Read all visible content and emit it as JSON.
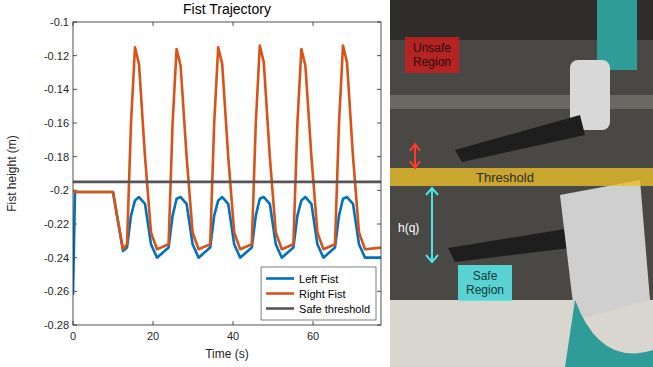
{
  "chart_data": {
    "type": "line",
    "title": "Fist Trajectory",
    "x_label": "Time (s)",
    "y_label": "Fist height (m)",
    "x": [
      0,
      0.5,
      10,
      11,
      12.5,
      13.5,
      14.5,
      15.5,
      16.5,
      18,
      19.5,
      21,
      23.9,
      24.9,
      25.9,
      26.9,
      28.4,
      29.9,
      31.4,
      34.3,
      35.3,
      36.3,
      37.3,
      38.8,
      40.3,
      41.8,
      44.7,
      45.7,
      46.7,
      47.7,
      49.2,
      50.7,
      52.2,
      55.1,
      56.1,
      57.1,
      58.1,
      59.6,
      61.1,
      62.6,
      65.5,
      66.5,
      67.5,
      68.5,
      70,
      71.5,
      73,
      77
    ],
    "series": [
      {
        "name": "Left Fist",
        "color": "#0072bd",
        "values": [
          -0.262,
          -0.201,
          -0.201,
          -0.215,
          -0.236,
          -0.234,
          -0.215,
          -0.206,
          -0.204,
          -0.208,
          -0.232,
          -0.24,
          -0.234,
          -0.215,
          -0.205,
          -0.204,
          -0.208,
          -0.232,
          -0.24,
          -0.234,
          -0.215,
          -0.206,
          -0.204,
          -0.208,
          -0.232,
          -0.24,
          -0.234,
          -0.215,
          -0.205,
          -0.204,
          -0.208,
          -0.232,
          -0.24,
          -0.234,
          -0.215,
          -0.206,
          -0.204,
          -0.208,
          -0.232,
          -0.24,
          -0.234,
          -0.215,
          -0.205,
          -0.204,
          -0.208,
          -0.232,
          -0.24,
          -0.24
        ]
      },
      {
        "name": "Right Fist",
        "color": "#d95319",
        "values": [
          -0.2,
          -0.201,
          -0.201,
          -0.215,
          -0.235,
          -0.232,
          -0.16,
          -0.115,
          -0.125,
          -0.18,
          -0.225,
          -0.235,
          -0.232,
          -0.16,
          -0.116,
          -0.126,
          -0.18,
          -0.225,
          -0.235,
          -0.232,
          -0.16,
          -0.115,
          -0.125,
          -0.18,
          -0.225,
          -0.235,
          -0.232,
          -0.16,
          -0.114,
          -0.124,
          -0.18,
          -0.225,
          -0.235,
          -0.232,
          -0.16,
          -0.116,
          -0.126,
          -0.18,
          -0.225,
          -0.235,
          -0.232,
          -0.16,
          -0.114,
          -0.124,
          -0.18,
          -0.225,
          -0.235,
          -0.234
        ]
      },
      {
        "name": "Safe threshold",
        "color": "#555555",
        "x": [
          0,
          77
        ],
        "values": [
          -0.195,
          -0.195
        ]
      }
    ],
    "xlim": [
      0,
      77
    ],
    "xticks": [
      0,
      20,
      40,
      60
    ],
    "ylim": [
      -0.28,
      -0.1
    ],
    "yticks": [
      -0.28,
      -0.26,
      -0.24,
      -0.22,
      -0.2,
      -0.18,
      -0.16,
      -0.14,
      -0.12,
      -0.1
    ],
    "grid": false,
    "legend": "lower right"
  },
  "photo": {
    "labels": {
      "unsafe": "Unsafe Region",
      "threshold": "Threshold",
      "distance": "h(q)",
      "safe": "Safe Region"
    }
  }
}
